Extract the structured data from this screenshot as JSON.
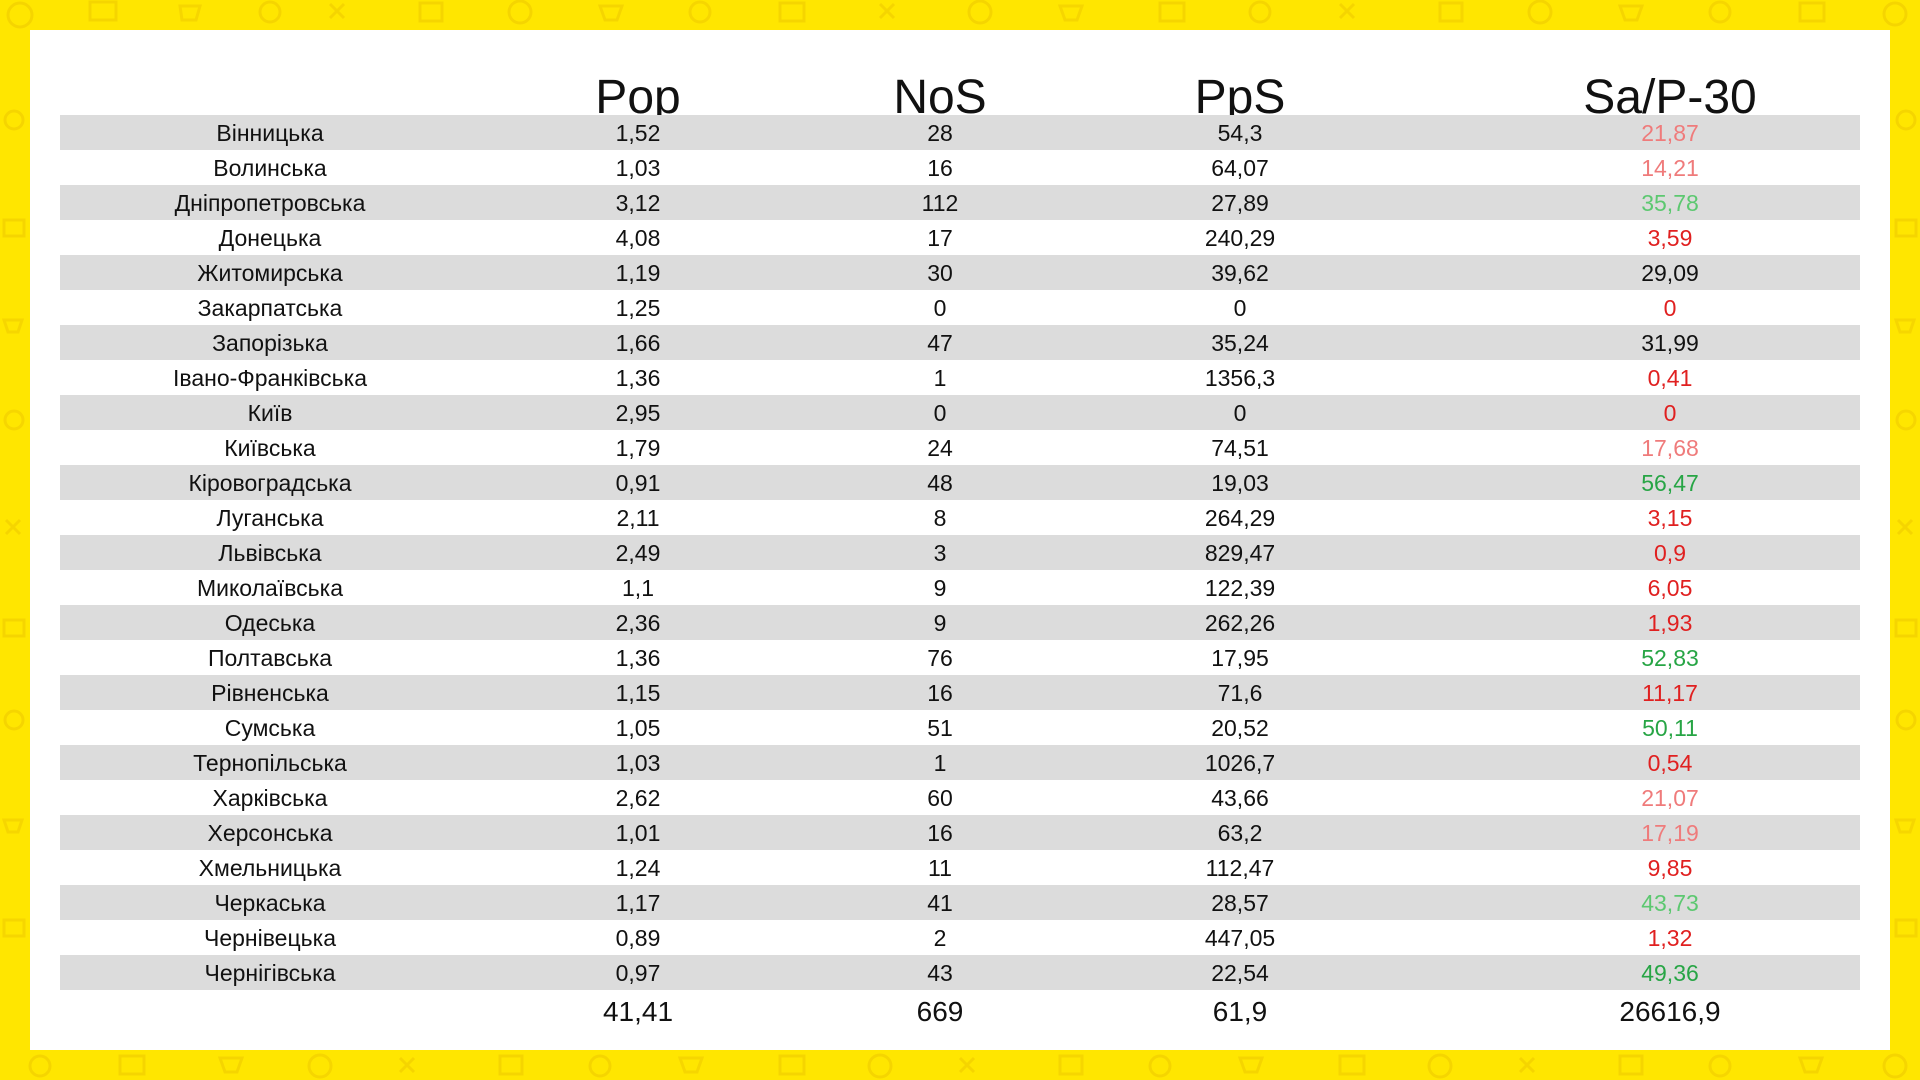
{
  "colors": {
    "background": "#ffe600",
    "panel": "#ffffff",
    "row_shade": "#dcdcdc",
    "red": "#e02020",
    "light_red": "#ef7b7b",
    "green": "#27a545",
    "light_green": "#5cc870",
    "black": "#111111"
  },
  "header": {
    "pop": "Pop",
    "nos": "NoS",
    "pps": "PpS",
    "sap": "Sa/P-30"
  },
  "rows": [
    {
      "name": "Вінницька",
      "pop": "1,52",
      "nos": "28",
      "pps": "54,3",
      "sap": "21,87",
      "sap_color": "light_red"
    },
    {
      "name": "Волинська",
      "pop": "1,03",
      "nos": "16",
      "pps": "64,07",
      "sap": "14,21",
      "sap_color": "light_red"
    },
    {
      "name": "Дніпропетровська",
      "pop": "3,12",
      "nos": "112",
      "pps": "27,89",
      "sap": "35,78",
      "sap_color": "light_green"
    },
    {
      "name": "Донецька",
      "pop": "4,08",
      "nos": "17",
      "pps": "240,29",
      "sap": "3,59",
      "sap_color": "red"
    },
    {
      "name": "Житомирська",
      "pop": "1,19",
      "nos": "30",
      "pps": "39,62",
      "sap": "29,09",
      "sap_color": "black"
    },
    {
      "name": "Закарпатська",
      "pop": "1,25",
      "nos": "0",
      "pps": "0",
      "sap": "0",
      "sap_color": "red"
    },
    {
      "name": "Запорізька",
      "pop": "1,66",
      "nos": "47",
      "pps": "35,24",
      "sap": "31,99",
      "sap_color": "black"
    },
    {
      "name": "Івано-Франківська",
      "pop": "1,36",
      "nos": "1",
      "pps": "1356,3",
      "sap": "0,41",
      "sap_color": "red"
    },
    {
      "name": "Київ",
      "pop": "2,95",
      "nos": "0",
      "pps": "0",
      "sap": "0",
      "sap_color": "red"
    },
    {
      "name": "Київська",
      "pop": "1,79",
      "nos": "24",
      "pps": "74,51",
      "sap": "17,68",
      "sap_color": "light_red"
    },
    {
      "name": "Кіровоградська",
      "pop": "0,91",
      "nos": "48",
      "pps": "19,03",
      "sap": "56,47",
      "sap_color": "green"
    },
    {
      "name": "Луганська",
      "pop": "2,11",
      "nos": "8",
      "pps": "264,29",
      "sap": "3,15",
      "sap_color": "red"
    },
    {
      "name": "Львівська",
      "pop": "2,49",
      "nos": "3",
      "pps": "829,47",
      "sap": "0,9",
      "sap_color": "red"
    },
    {
      "name": "Миколаївська",
      "pop": "1,1",
      "nos": "9",
      "pps": "122,39",
      "sap": "6,05",
      "sap_color": "red"
    },
    {
      "name": "Одеська",
      "pop": "2,36",
      "nos": "9",
      "pps": "262,26",
      "sap": "1,93",
      "sap_color": "red"
    },
    {
      "name": "Полтавська",
      "pop": "1,36",
      "nos": "76",
      "pps": "17,95",
      "sap": "52,83",
      "sap_color": "green"
    },
    {
      "name": "Рівненська",
      "pop": "1,15",
      "nos": "16",
      "pps": "71,6",
      "sap": "11,17",
      "sap_color": "red"
    },
    {
      "name": "Сумська",
      "pop": "1,05",
      "nos": "51",
      "pps": "20,52",
      "sap": "50,11",
      "sap_color": "green"
    },
    {
      "name": "Тернопільська",
      "pop": "1,03",
      "nos": "1",
      "pps": "1026,7",
      "sap": "0,54",
      "sap_color": "red"
    },
    {
      "name": "Харківська",
      "pop": "2,62",
      "nos": "60",
      "pps": "43,66",
      "sap": "21,07",
      "sap_color": "light_red"
    },
    {
      "name": "Херсонська",
      "pop": "1,01",
      "nos": "16",
      "pps": "63,2",
      "sap": "17,19",
      "sap_color": "light_red"
    },
    {
      "name": "Хмельницька",
      "pop": "1,24",
      "nos": "11",
      "pps": "112,47",
      "sap": "9,85",
      "sap_color": "red"
    },
    {
      "name": "Черкаська",
      "pop": "1,17",
      "nos": "41",
      "pps": "28,57",
      "sap": "43,73",
      "sap_color": "light_green"
    },
    {
      "name": "Чернівецька",
      "pop": "0,89",
      "nos": "2",
      "pps": "447,05",
      "sap": "1,32",
      "sap_color": "red"
    },
    {
      "name": "Чернігівська",
      "pop": "0,97",
      "nos": "43",
      "pps": "22,54",
      "sap": "49,36",
      "sap_color": "green"
    }
  ],
  "totals": {
    "pop": "41,41",
    "nos": "669",
    "pps": "61,9",
    "sap": "26616,9"
  }
}
